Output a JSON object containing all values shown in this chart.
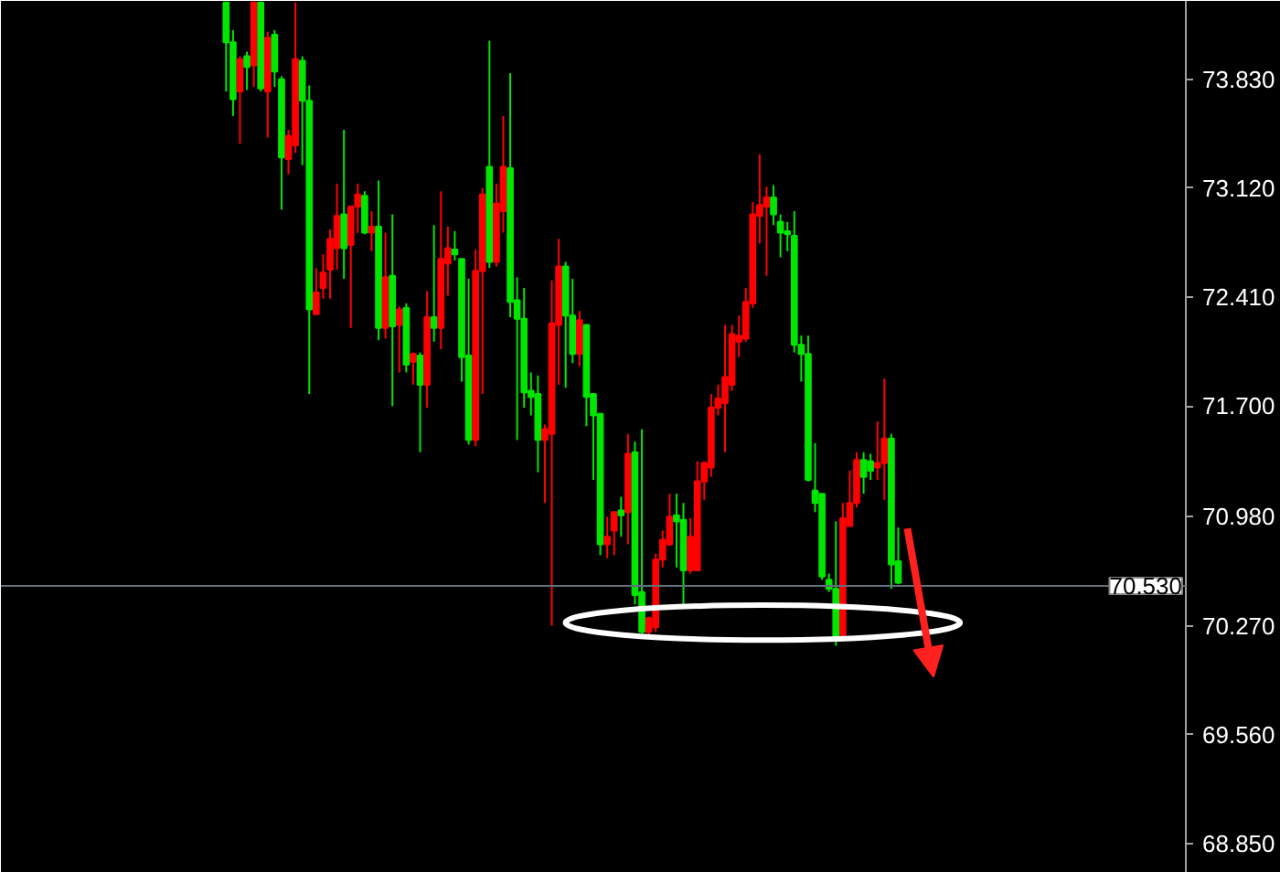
{
  "chart_data": {
    "type": "candlestick",
    "categories": [
      null,
      null,
      null,
      null,
      null,
      null,
      null,
      null,
      null,
      null,
      null,
      null,
      null,
      null,
      null,
      null,
      null,
      null,
      null,
      null,
      null,
      null,
      null,
      null,
      null,
      null,
      null,
      null,
      null,
      null,
      null,
      null,
      null,
      null,
      null,
      null,
      null,
      null,
      null,
      null,
      null,
      null,
      null,
      null,
      null,
      null,
      null,
      null,
      null,
      null,
      null,
      null,
      null,
      null,
      null,
      null,
      null,
      null,
      null,
      null,
      null,
      null,
      null,
      null,
      null,
      null,
      null,
      null,
      null,
      null,
      null,
      null,
      null,
      null,
      null,
      null,
      null,
      null,
      null,
      null,
      null,
      null,
      null,
      null,
      null,
      null,
      null,
      null,
      null,
      null,
      null,
      null,
      null,
      null,
      null,
      null,
      null,
      null,
      null,
      null,
      null,
      null,
      null,
      null,
      null,
      null,
      null,
      null,
      null,
      null,
      null,
      null,
      null,
      null,
      null,
      null,
      null,
      null,
      null,
      null,
      null,
      null,
      null,
      null,
      null,
      null,
      null,
      null,
      null,
      null,
      null,
      null,
      null,
      null,
      null,
      null,
      null,
      null,
      null,
      null,
      null,
      null,
      null,
      null,
      null,
      null,
      null,
      null,
      null,
      null,
      null,
      null,
      null,
      null,
      null,
      null,
      null,
      null,
      null,
      null,
      null,
      null,
      null,
      null,
      null,
      null,
      null,
      null,
      null,
      null,
      null
    ],
    "ohlc": [
      null,
      null,
      null,
      null,
      null,
      null,
      null,
      null,
      null,
      null,
      null,
      null,
      null,
      null,
      null,
      null,
      null,
      null,
      null,
      null,
      null,
      null,
      null,
      null,
      null,
      null,
      null,
      null,
      null,
      null,
      null,
      null,
      [
        74.33,
        74.33,
        73.75,
        74.07
      ],
      [
        74.07,
        74.15,
        73.59,
        73.7
      ],
      [
        73.75,
        73.98,
        73.41,
        73.96
      ],
      [
        73.98,
        74.01,
        73.76,
        73.91
      ],
      [
        73.92,
        74.33,
        73.78,
        74.33
      ],
      [
        74.33,
        74.33,
        73.75,
        73.77
      ],
      [
        73.75,
        74.14,
        73.45,
        74.1
      ],
      [
        74.12,
        74.15,
        73.78,
        73.88
      ],
      [
        73.83,
        73.85,
        72.98,
        73.32
      ],
      [
        73.31,
        73.5,
        73.21,
        73.46
      ],
      [
        73.4,
        74.33,
        73.35,
        73.96
      ],
      [
        73.95,
        73.98,
        73.27,
        73.69
      ],
      [
        73.69,
        73.79,
        71.78,
        72.33
      ],
      [
        72.3,
        72.6,
        72.3,
        72.44
      ],
      [
        72.47,
        72.69,
        72.4,
        72.57
      ],
      [
        72.59,
        72.85,
        72.4,
        72.79
      ],
      [
        72.73,
        73.15,
        72.59,
        72.94
      ],
      [
        72.95,
        73.5,
        72.53,
        72.73
      ],
      [
        72.75,
        73.0,
        72.21,
        73.0
      ],
      [
        73.0,
        73.15,
        72.83,
        73.08
      ],
      [
        73.07,
        73.1,
        72.82,
        72.83
      ],
      [
        72.83,
        72.97,
        72.71,
        72.87
      ],
      [
        72.87,
        73.17,
        72.13,
        72.21
      ],
      [
        72.21,
        72.83,
        72.14,
        72.54
      ],
      [
        72.55,
        72.95,
        71.7,
        72.22
      ],
      [
        72.23,
        72.35,
        71.92,
        72.33
      ],
      [
        72.34,
        72.37,
        71.92,
        71.97
      ],
      [
        71.99,
        72.05,
        71.84,
        72.04
      ],
      [
        72.03,
        72.05,
        71.4,
        71.84
      ],
      [
        71.84,
        72.45,
        71.69,
        72.28
      ],
      [
        72.28,
        72.88,
        72.12,
        72.21
      ],
      [
        72.21,
        73.1,
        72.07,
        72.66
      ],
      [
        72.63,
        72.87,
        72.42,
        72.73
      ],
      [
        72.72,
        72.84,
        72.65,
        72.69
      ],
      [
        72.66,
        72.66,
        71.86,
        72.02
      ],
      [
        72.03,
        72.53,
        71.45,
        71.48
      ],
      [
        71.48,
        72.72,
        71.44,
        72.58
      ],
      [
        72.58,
        73.12,
        71.78,
        73.08
      ],
      [
        73.26,
        74.08,
        72.6,
        72.64
      ],
      [
        72.64,
        73.15,
        72.61,
        73.02
      ],
      [
        72.97,
        73.59,
        72.83,
        73.26
      ],
      [
        73.25,
        73.87,
        72.28,
        72.38
      ],
      [
        72.39,
        72.54,
        71.48,
        72.27
      ],
      [
        72.27,
        72.47,
        71.69,
        71.79
      ],
      [
        71.8,
        71.92,
        71.64,
        71.76
      ],
      [
        71.78,
        71.9,
        71.27,
        71.48
      ],
      [
        71.48,
        71.58,
        71.07,
        71.55
      ],
      [
        71.52,
        72.52,
        70.27,
        72.24
      ],
      [
        72.23,
        72.79,
        71.84,
        72.61
      ],
      [
        72.61,
        72.64,
        71.82,
        72.29
      ],
      [
        72.29,
        72.53,
        71.98,
        72.04
      ],
      [
        72.04,
        72.32,
        71.96,
        72.26
      ],
      [
        72.23,
        72.23,
        71.57,
        71.76
      ],
      [
        71.78,
        71.78,
        71.22,
        71.64
      ],
      [
        71.65,
        71.65,
        70.73,
        70.8
      ],
      [
        70.8,
        70.98,
        70.71,
        70.85
      ],
      [
        70.89,
        71.01,
        70.73,
        71.01
      ],
      [
        71.02,
        71.11,
        70.85,
        70.99
      ],
      [
        71.01,
        71.52,
        70.8,
        71.39
      ],
      [
        71.4,
        71.47,
        70.41,
        70.47
      ],
      [
        70.49,
        71.55,
        70.22,
        70.23
      ],
      [
        70.23,
        70.33,
        70.21,
        70.32
      ],
      [
        70.26,
        70.74,
        70.23,
        70.7
      ],
      [
        70.7,
        70.89,
        70.65,
        70.83
      ],
      [
        70.8,
        71.13,
        70.79,
        70.98
      ],
      [
        70.99,
        71.13,
        70.65,
        70.95
      ],
      [
        70.96,
        71.07,
        70.39,
        70.63
      ],
      [
        70.63,
        70.97,
        70.61,
        70.85
      ],
      [
        70.63,
        71.34,
        70.63,
        71.21
      ],
      [
        71.21,
        71.34,
        71.09,
        71.33
      ],
      [
        71.3,
        71.78,
        71.24,
        71.69
      ],
      [
        71.69,
        71.84,
        71.64,
        71.75
      ],
      [
        71.72,
        72.23,
        71.4,
        71.89
      ],
      [
        71.84,
        72.23,
        71.8,
        72.17
      ],
      [
        72.12,
        72.29,
        72.02,
        72.16
      ],
      [
        72.14,
        72.47,
        72.12,
        72.38
      ],
      [
        72.37,
        73.03,
        72.34,
        72.95
      ],
      [
        72.94,
        73.34,
        72.76,
        73.01
      ],
      [
        73.0,
        73.13,
        72.55,
        73.06
      ],
      [
        73.06,
        73.14,
        72.88,
        72.95
      ],
      [
        72.9,
        72.95,
        72.67,
        72.83
      ],
      [
        72.84,
        72.9,
        72.71,
        72.82
      ],
      [
        72.81,
        72.97,
        72.05,
        72.1
      ],
      [
        72.1,
        72.16,
        71.86,
        72.04
      ],
      [
        72.04,
        72.16,
        71.21,
        71.22
      ],
      [
        71.15,
        71.46,
        71.01,
        71.07
      ],
      [
        71.13,
        71.13,
        70.57,
        70.59
      ],
      [
        70.57,
        70.61,
        70.49,
        70.51
      ],
      [
        70.51,
        70.95,
        70.14,
        70.2
      ],
      [
        70.21,
        71.07,
        70.2,
        70.97
      ],
      [
        70.92,
        71.28,
        70.92,
        71.07
      ],
      [
        71.07,
        71.4,
        71.04,
        71.35
      ],
      [
        71.35,
        71.4,
        71.13,
        71.24
      ],
      [
        71.34,
        71.39,
        71.22,
        71.28
      ],
      [
        71.3,
        71.6,
        71.22,
        71.33
      ],
      [
        71.33,
        71.88,
        71.09,
        71.49
      ],
      [
        71.49,
        71.52,
        70.51,
        70.67
      ],
      [
        70.69,
        70.91,
        70.54,
        70.55
      ],
      null,
      null,
      null,
      null,
      null,
      null,
      null,
      null,
      null,
      null,
      null,
      null,
      null,
      null,
      null,
      null,
      null,
      null,
      null,
      null,
      null,
      null,
      null,
      null,
      null,
      null,
      null,
      null,
      null,
      null,
      null,
      null,
      null,
      null,
      null,
      null,
      null,
      null,
      null,
      null,
      null
    ],
    "colors": [
      null,
      null,
      null,
      null,
      null,
      null,
      null,
      null,
      null,
      null,
      null,
      null,
      null,
      null,
      null,
      null,
      null,
      null,
      null,
      null,
      null,
      null,
      null,
      null,
      null,
      null,
      null,
      null,
      null,
      null,
      null,
      null,
      "#00e600",
      "#00e600",
      "#ff0000",
      "#00e600",
      "#ff0000",
      "#00e600",
      "#ff0000",
      "#00e600",
      "#00e600",
      "#ff0000",
      "#ff0000",
      "#00e600",
      "#00e600",
      "#ff0000",
      "#ff0000",
      "#ff0000",
      "#ff0000",
      "#00e600",
      "#ff0000",
      "#ff0000",
      "#00e600",
      "#ff0000",
      "#00e600",
      "#ff0000",
      "#00e600",
      "#ff0000",
      "#00e600",
      "#ff0000",
      "#00e600",
      "#ff0000",
      "#00e600",
      "#ff0000",
      "#ff0000",
      "#00e600",
      "#00e600",
      "#00e600",
      "#ff0000",
      "#ff0000",
      "#00e600",
      "#ff0000",
      "#ff0000",
      "#00e600",
      "#00e600",
      "#00e600",
      "#00e600",
      "#00e600",
      "#ff0000",
      "#ff0000",
      "#ff0000",
      "#00e600",
      "#00e600",
      "#ff0000",
      "#00e600",
      "#00e600",
      "#00e600",
      "#ff0000",
      "#ff0000",
      "#00e600",
      "#ff0000",
      "#00e600",
      "#00e600",
      "#ff0000",
      "#ff0000",
      "#ff0000",
      "#ff0000",
      "#00e600",
      "#00e600",
      "#ff0000",
      "#ff0000",
      "#ff0000",
      "#ff0000",
      "#ff0000",
      "#ff0000",
      "#ff0000",
      "#ff0000",
      "#ff0000",
      "#ff0000",
      "#ff0000",
      "#ff0000",
      "#00e600",
      "#00e600",
      "#00e600",
      "#00e600",
      "#00e600",
      "#00e600",
      "#00e600",
      "#00e600",
      "#00e600",
      "#00e600",
      "#ff0000",
      "#ff0000",
      "#ff0000",
      "#00e600",
      "#00e600",
      "#ff0000",
      "#ff0000",
      "#00e600",
      "#00e600",
      null,
      null,
      null,
      null,
      null,
      null,
      null,
      null,
      null,
      null,
      null,
      null,
      null,
      null,
      null,
      null,
      null,
      null,
      null,
      null,
      null,
      null,
      null,
      null,
      null,
      null,
      null,
      null,
      null,
      null,
      null,
      null,
      null,
      null,
      null,
      null,
      null,
      null,
      null,
      null,
      null
    ],
    "ylim": [
      68.66,
      74.34
    ],
    "yticks": [
      {
        "value": 68.85,
        "label": "68.850"
      },
      {
        "value": 69.56,
        "label": "69.560"
      },
      {
        "value": 70.27,
        "label": "70.270"
      },
      {
        "value": 70.98,
        "label": "70.980"
      },
      {
        "value": 71.7,
        "label": "71.700"
      },
      {
        "value": 72.41,
        "label": "72.410"
      },
      {
        "value": 73.12,
        "label": "73.120"
      },
      {
        "value": 73.83,
        "label": "73.830"
      }
    ],
    "tick_labels": "y",
    "grid": false,
    "ref_lines": [
      {
        "axis": "y",
        "value": 70.53,
        "label": "70.530",
        "color": "#5f6f7c"
      }
    ]
  }
}
